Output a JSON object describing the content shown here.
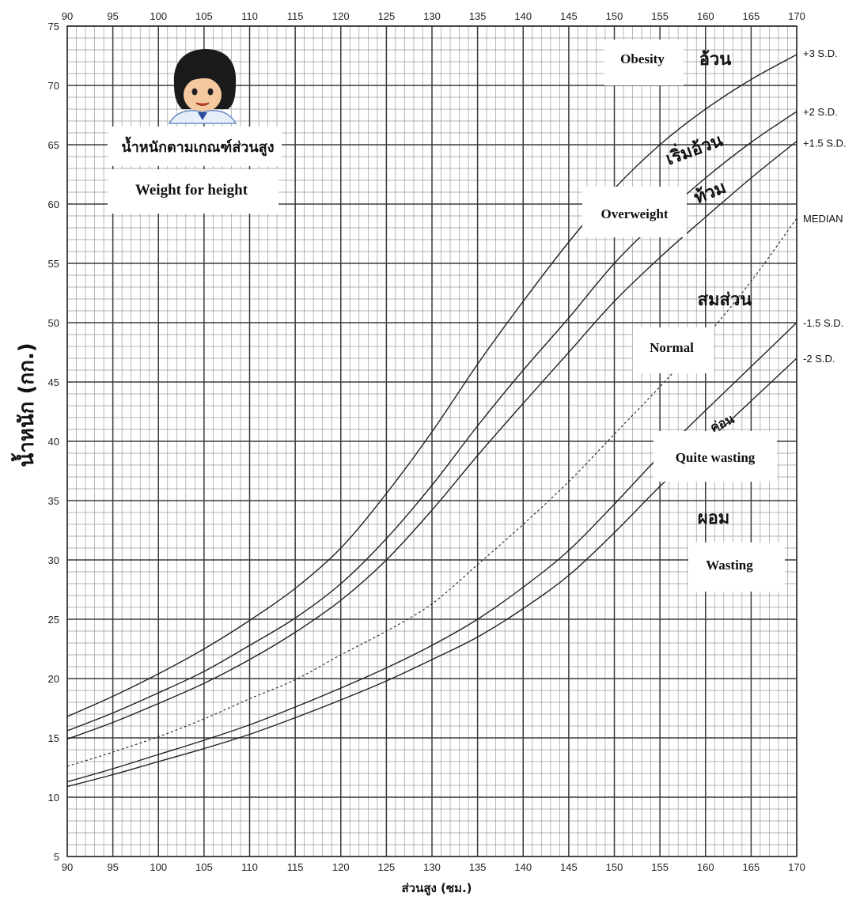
{
  "chart_data": {
    "type": "line",
    "title_thai": "น้ำหนักตามเกณฑ์ส่วนสูง",
    "title_en": "Weight for height",
    "xlabel": "ส่วนสูง (ซม.)",
    "ylabel": "น้ำหนัก (กก.)",
    "xlim": [
      90,
      170
    ],
    "ylim": [
      5,
      75
    ],
    "x_ticks": [
      90,
      95,
      100,
      105,
      110,
      115,
      120,
      125,
      130,
      135,
      140,
      145,
      150,
      155,
      160,
      165,
      170
    ],
    "y_ticks": [
      5,
      10,
      15,
      20,
      25,
      30,
      35,
      40,
      45,
      50,
      55,
      60,
      65,
      70,
      75
    ],
    "grid": true,
    "x": [
      90,
      95,
      100,
      105,
      110,
      115,
      120,
      125,
      130,
      135,
      140,
      145,
      150,
      155,
      160,
      165,
      170
    ],
    "series": [
      {
        "name": "+3 S.D.",
        "style": "solid",
        "values": [
          16.8,
          18.5,
          20.4,
          22.5,
          24.9,
          27.6,
          31.0,
          35.6,
          40.8,
          46.5,
          51.8,
          56.8,
          61.3,
          65.0,
          68.0,
          70.5,
          72.6
        ]
      },
      {
        "name": "+2 S.D.",
        "style": "solid",
        "values": [
          15.6,
          17.1,
          18.8,
          20.6,
          22.8,
          25.1,
          28.0,
          31.8,
          36.3,
          41.3,
          46.0,
          50.4,
          55.0,
          58.8,
          62.2,
          65.2,
          67.8
        ]
      },
      {
        "name": "+1.5 S.D.",
        "style": "solid",
        "values": [
          14.9,
          16.3,
          17.9,
          19.6,
          21.6,
          23.9,
          26.6,
          30.0,
          34.2,
          38.8,
          43.2,
          47.5,
          51.8,
          55.5,
          58.9,
          62.2,
          65.3
        ]
      },
      {
        "name": "MEDIAN",
        "style": "dashed",
        "values": [
          12.6,
          13.8,
          15.1,
          16.6,
          18.3,
          19.9,
          22.0,
          24.0,
          26.3,
          29.6,
          33.0,
          36.6,
          40.6,
          44.6,
          48.8,
          53.5,
          58.8
        ]
      },
      {
        "name": "-1.5 S.D.",
        "style": "solid",
        "values": [
          11.3,
          12.4,
          13.6,
          14.8,
          16.1,
          17.6,
          19.2,
          20.9,
          22.8,
          25.0,
          27.7,
          30.8,
          34.7,
          38.8,
          42.6,
          46.3,
          50.0
        ]
      },
      {
        "name": "-2 S.D.",
        "style": "solid",
        "values": [
          10.9,
          11.9,
          13.0,
          14.1,
          15.3,
          16.7,
          18.2,
          19.8,
          21.6,
          23.5,
          25.9,
          28.7,
          32.3,
          36.2,
          39.8,
          43.4,
          47.0
        ]
      }
    ],
    "zones": [
      {
        "label": "Obesity",
        "thai": "อ้วน"
      },
      {
        "label": "",
        "thai": "เริ่มอ้วน"
      },
      {
        "label": "Overweight",
        "thai": "ท้วม"
      },
      {
        "label": "Normal",
        "thai": "สมส่วน"
      },
      {
        "label": "Quite wasting",
        "thai": "ค่อน"
      },
      {
        "label": "Wasting",
        "thai": "ผอม"
      }
    ]
  }
}
